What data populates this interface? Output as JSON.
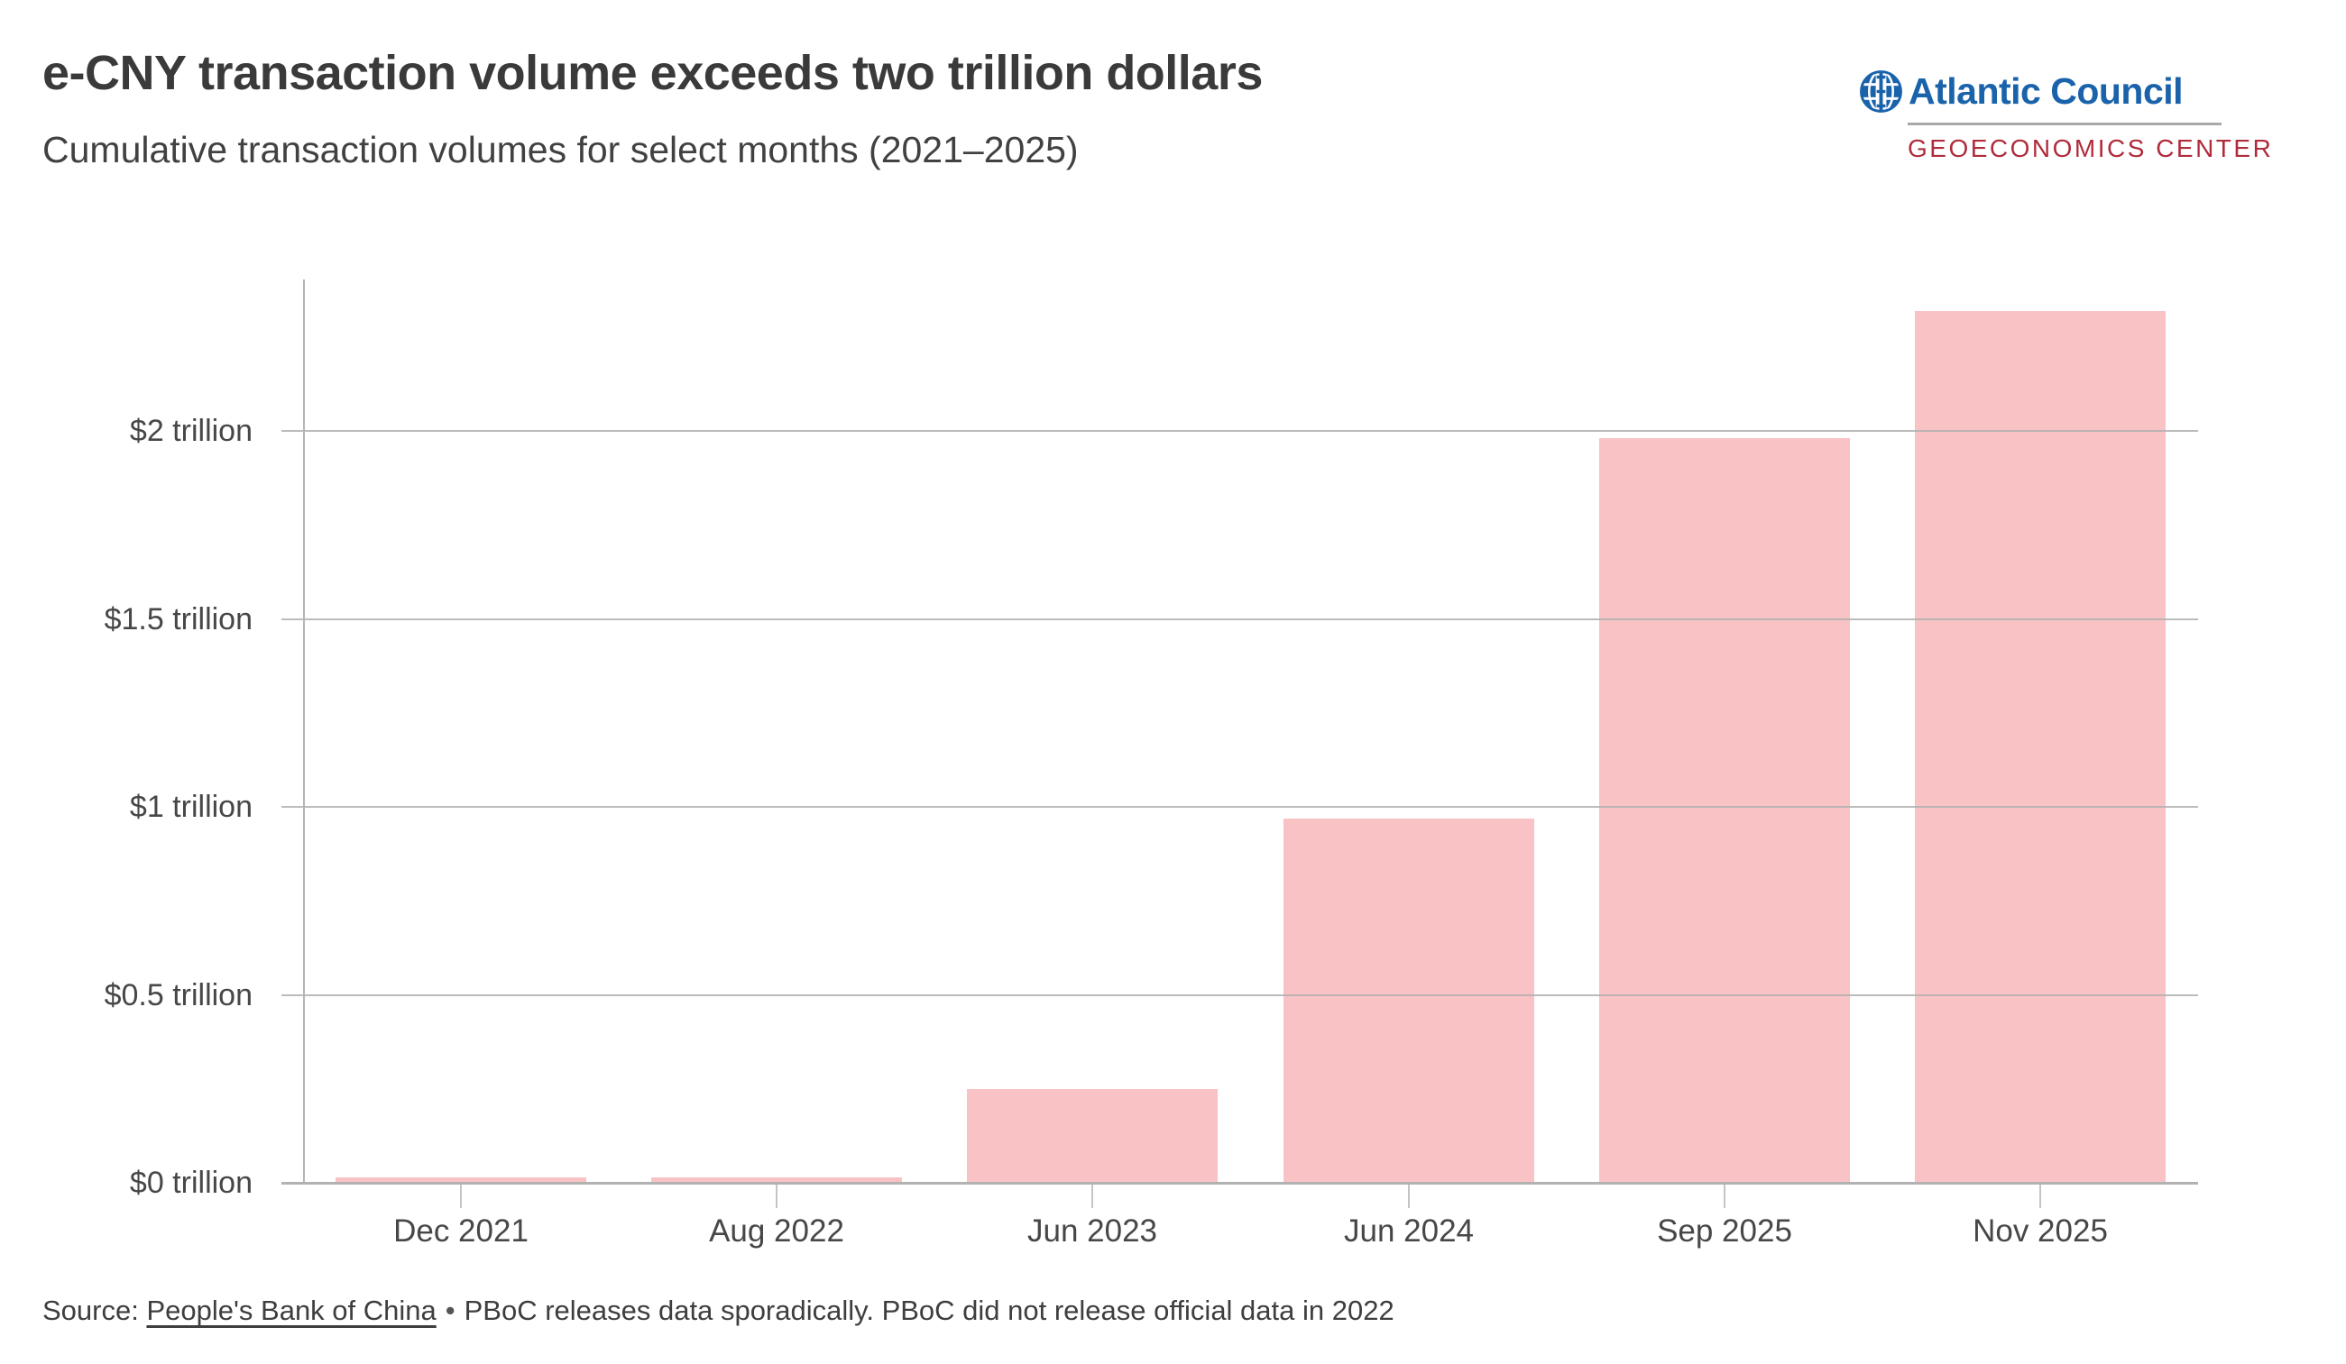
{
  "header": {
    "title": "e-CNY transaction volume exceeds two trillion dollars",
    "subtitle": "Cumulative transaction volumes for select months (2021–2025)"
  },
  "logo": {
    "org": "Atlantic Council",
    "center": "GEOECONOMICS CENTER",
    "globe_icon": "globe-icon",
    "colors": {
      "blue": "#1a63ab",
      "red": "#b02c3c",
      "divider": "#a9a9a9"
    }
  },
  "chart_data": {
    "type": "bar",
    "title": "e-CNY transaction volume exceeds two trillion dollars",
    "subtitle": "Cumulative transaction volumes for select months (2021–2025)",
    "categories": [
      "Dec 2021",
      "Aug 2022",
      "Jun 2023",
      "Jun 2024",
      "Sep 2025",
      "Nov 2025"
    ],
    "values": [
      0.014,
      0.015,
      0.25,
      0.97,
      1.98,
      2.32
    ],
    "unit": "trillion USD",
    "xlabel": "",
    "ylabel": "",
    "ylim": [
      0,
      2.4
    ],
    "yticks": [
      {
        "value": 0,
        "label": "$0 trillion"
      },
      {
        "value": 0.5,
        "label": "$0.5 trillion"
      },
      {
        "value": 1,
        "label": "$1 trillion"
      },
      {
        "value": 1.5,
        "label": "$1.5 trillion"
      },
      {
        "value": 2,
        "label": "$2 trillion"
      }
    ],
    "grid": true,
    "legend": null,
    "bar_color": "#f9c2c5"
  },
  "footer": {
    "source_label": "Source:",
    "source_link": "People's Bank of China",
    "bullet": "•",
    "note": "PBoC releases data sporadically. PBoC did not release official data in 2022"
  }
}
